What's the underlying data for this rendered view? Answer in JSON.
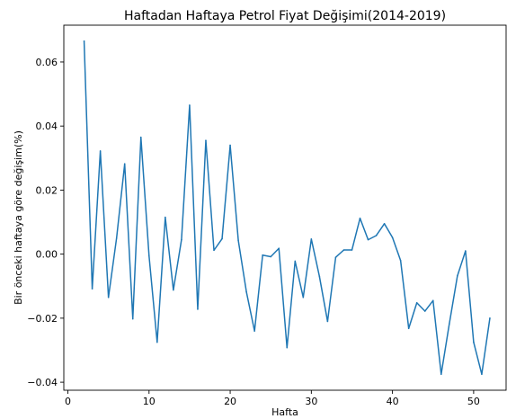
{
  "chart_data": {
    "type": "line",
    "title": "Haftadan Haftaya Petrol Fiyat Değişimi(2014-2019)",
    "xlabel": "Hafta",
    "ylabel": "Bir önceki haftaya göre değişim(%)",
    "xlim": [
      -0.5,
      54
    ],
    "ylim": [
      -0.0425,
      0.0715
    ],
    "x_ticks": [
      0,
      10,
      20,
      30,
      40,
      50
    ],
    "y_ticks": [
      -0.04,
      -0.02,
      0.0,
      0.02,
      0.04,
      0.06
    ],
    "y_tick_labels": [
      "−0.04",
      "−0.02",
      "0.00",
      "0.02",
      "0.04",
      "0.06"
    ],
    "grid": false,
    "series": [
      {
        "color": "#1f77b4",
        "x": [
          2,
          3,
          4,
          5,
          6,
          7,
          8,
          9,
          10,
          11,
          12,
          13,
          14,
          15,
          16,
          17,
          18,
          19,
          20,
          21,
          22,
          23,
          24,
          25,
          26,
          27,
          28,
          29,
          30,
          31,
          32,
          33,
          34,
          35,
          36,
          37,
          38,
          39,
          40,
          41,
          42,
          43,
          44,
          45,
          46,
          47,
          48,
          49,
          50,
          51,
          52
        ],
        "y": [
          0.0665,
          -0.0108,
          0.0322,
          -0.0135,
          0.005,
          0.0282,
          -0.0202,
          0.0365,
          -0.0005,
          -0.0275,
          0.0115,
          -0.0112,
          0.0045,
          0.0465,
          -0.0172,
          0.0355,
          0.0012,
          0.0048,
          0.034,
          0.0043,
          -0.0118,
          -0.024,
          -0.0003,
          -0.0008,
          0.0018,
          -0.0292,
          -0.0022,
          -0.0135,
          0.0047,
          -0.007,
          -0.021,
          -0.001,
          0.0013,
          0.0013,
          0.0112,
          0.0045,
          0.0058,
          0.0095,
          0.0052,
          -0.002,
          -0.0232,
          -0.0152,
          -0.0178,
          -0.0145,
          -0.0375,
          -0.0218,
          -0.0068,
          0.001,
          -0.0275,
          -0.0375,
          -0.02
        ]
      }
    ]
  }
}
